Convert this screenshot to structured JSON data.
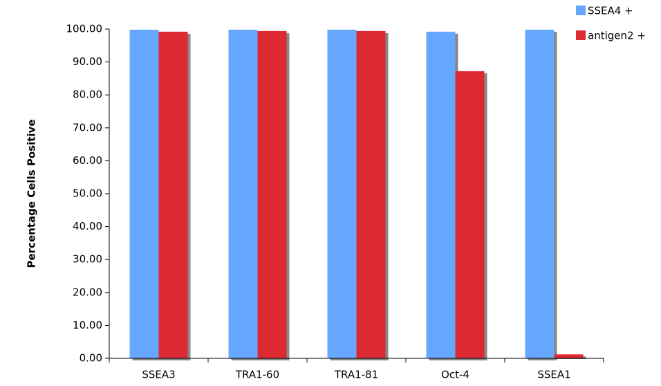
{
  "chart_data": {
    "type": "bar",
    "y_label": "Percentage Cells Positive",
    "categories": [
      "SSEA3",
      "TRA1-60",
      "TRA1-81",
      "Oct-4",
      "SSEA1"
    ],
    "series": [
      {
        "name": "SSEA4 +",
        "color": "#66a8ff",
        "values": [
          99.8,
          99.8,
          99.8,
          99.2,
          99.8
        ]
      },
      {
        "name": "antigen2 +",
        "color": "#dd2c33",
        "values": [
          99.2,
          99.4,
          99.4,
          87.2,
          1.2
        ]
      }
    ],
    "ylim": [
      0,
      100
    ],
    "yticks": [
      {
        "value": 0,
        "label": "0.00"
      },
      {
        "value": 10,
        "label": "10.00"
      },
      {
        "value": 20,
        "label": "20.00"
      },
      {
        "value": 30,
        "label": "30.00"
      },
      {
        "value": 40,
        "label": "40.00"
      },
      {
        "value": 50,
        "label": "50.00"
      },
      {
        "value": 60,
        "label": "60.00"
      },
      {
        "value": 70,
        "label": "70.00"
      },
      {
        "value": 80,
        "label": "80.00"
      },
      {
        "value": 90,
        "label": "90.00"
      },
      {
        "value": 100,
        "label": "100.00"
      }
    ],
    "legend": "top-right"
  }
}
